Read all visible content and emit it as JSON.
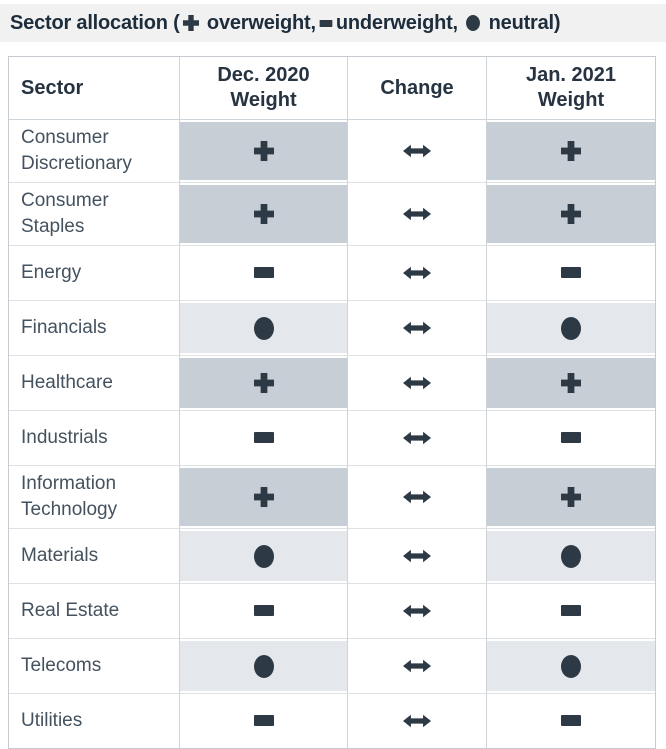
{
  "title_bar": {
    "prefix": "Sector allocation (",
    "legend": [
      {
        "icon": "plus",
        "label": " overweight,"
      },
      {
        "icon": "minus",
        "label": "underweight, "
      },
      {
        "icon": "circle",
        "label": " neutral"
      }
    ],
    "suffix": ")"
  },
  "table": {
    "display_columns": [
      "Sector",
      "Dec. 2020\nWeight",
      "Change",
      "Jan. 2021\nWeight"
    ]
  },
  "chart_data": {
    "type": "table",
    "title": "Sector allocation (+ overweight, - underweight, ● neutral)",
    "columns": [
      "Sector",
      "Dec. 2020 Weight",
      "Change",
      "Jan. 2021 Weight"
    ],
    "rows": [
      [
        "Consumer Discretionary",
        "overweight",
        "unchanged",
        "overweight"
      ],
      [
        "Consumer Staples",
        "overweight",
        "unchanged",
        "overweight"
      ],
      [
        "Energy",
        "underweight",
        "unchanged",
        "underweight"
      ],
      [
        "Financials",
        "neutral",
        "unchanged",
        "neutral"
      ],
      [
        "Healthcare",
        "overweight",
        "unchanged",
        "overweight"
      ],
      [
        "Industrials",
        "underweight",
        "unchanged",
        "underweight"
      ],
      [
        "Information Technology",
        "overweight",
        "unchanged",
        "overweight"
      ],
      [
        "Materials",
        "neutral",
        "unchanged",
        "neutral"
      ],
      [
        "Real Estate",
        "underweight",
        "unchanged",
        "underweight"
      ],
      [
        "Telecoms",
        "neutral",
        "unchanged",
        "neutral"
      ],
      [
        "Utilities",
        "underweight",
        "unchanged",
        "underweight"
      ]
    ],
    "symbol_legend": {
      "plus": "overweight",
      "minus": "underweight",
      "circle": "neutral",
      "left_right_arrow": "unchanged"
    }
  },
  "colors": {
    "title_bar_bg": "#f1f1f2",
    "title_text": "#1e2d3c",
    "header_text": "#263340",
    "sector_text": "#44525f",
    "symbol": "#2d3a46",
    "overweight_cell_bg": "#c7ced6",
    "neutral_cell_bg": "#e4e7eb",
    "underweight_cell_bg": "#ffffff"
  }
}
